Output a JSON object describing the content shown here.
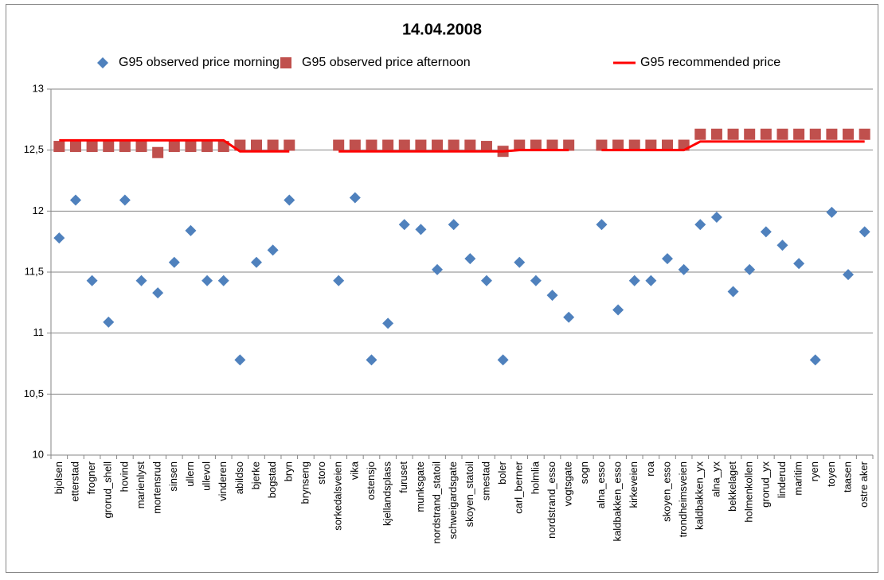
{
  "chart_data": {
    "type": "scatter",
    "title": "14.04.2008",
    "categories": [
      "bjolsen",
      "etterstad",
      "frogner",
      "grorud_shell",
      "hovind",
      "marienlyst",
      "mortensrud",
      "sinsen",
      "ullern",
      "ullevol",
      "vinderen",
      "abildso",
      "bjerke",
      "bogstad",
      "bryn",
      "brynseng",
      "storo",
      "sorkedalsveien",
      "vika",
      "ostensjo",
      "kjellandsplass",
      "furuset",
      "munksgate",
      "nordstrand_statoil",
      "schweigardsgate",
      "skoyen_statoil",
      "smestad",
      "boler",
      "carl_berner",
      "holmlia",
      "nordstrand_esso",
      "vogtsgate",
      "sogn",
      "alna_esso",
      "kaldbakken_esso",
      "kirkeveien",
      "roa",
      "skoyen_esso",
      "trondheimsveien",
      "kaldbakken_yx",
      "alna_yx",
      "bekkelaget",
      "holmenkollen",
      "grorud_yx",
      "linderud",
      "maritim",
      "ryen",
      "toyen",
      "taasen",
      "ostre aker"
    ],
    "series": [
      {
        "name": "G95 observed price morning",
        "color": "#4f81bd",
        "marker": "diamond",
        "values": [
          11.78,
          12.09,
          11.43,
          11.09,
          12.09,
          11.43,
          11.33,
          11.58,
          11.84,
          11.43,
          11.43,
          10.78,
          11.58,
          11.68,
          12.09,
          null,
          null,
          11.43,
          12.11,
          10.78,
          11.08,
          11.89,
          11.85,
          11.52,
          11.89,
          11.61,
          11.43,
          10.78,
          11.58,
          11.43,
          11.31,
          11.13,
          null,
          11.89,
          11.19,
          11.43,
          11.43,
          11.61,
          11.52,
          11.89,
          11.95,
          11.34,
          11.52,
          11.83,
          11.72,
          11.57,
          10.78,
          11.99,
          11.48,
          11.83
        ]
      },
      {
        "name": "G95 observed price afternoon",
        "color": "#c0504d",
        "marker": "square",
        "values": [
          12.53,
          12.53,
          12.53,
          12.53,
          12.53,
          12.53,
          12.48,
          12.53,
          12.53,
          12.53,
          12.53,
          12.54,
          12.54,
          12.54,
          12.54,
          null,
          null,
          12.54,
          12.54,
          12.54,
          12.54,
          12.54,
          12.54,
          12.54,
          12.54,
          12.54,
          12.53,
          12.49,
          12.54,
          12.54,
          12.54,
          12.54,
          null,
          12.54,
          12.54,
          12.54,
          12.54,
          12.54,
          12.54,
          12.63,
          12.63,
          12.63,
          12.63,
          12.63,
          12.63,
          12.63,
          12.63,
          12.63,
          12.63,
          12.63
        ]
      },
      {
        "name": "G95 recommended price",
        "color": "#ff0000",
        "marker": "line",
        "values": [
          12.58,
          12.58,
          12.58,
          12.58,
          12.58,
          12.58,
          12.58,
          12.58,
          12.58,
          12.58,
          12.58,
          12.49,
          12.49,
          12.49,
          12.49,
          null,
          null,
          12.49,
          12.49,
          12.49,
          12.49,
          12.49,
          12.49,
          12.49,
          12.49,
          12.49,
          12.49,
          12.49,
          12.5,
          12.5,
          12.5,
          12.5,
          null,
          12.5,
          12.5,
          12.5,
          12.5,
          12.5,
          12.5,
          12.57,
          12.57,
          12.57,
          12.57,
          12.57,
          12.57,
          12.57,
          12.57,
          12.57,
          12.57,
          12.57
        ]
      }
    ],
    "ylim": [
      10,
      13
    ],
    "yticks": [
      10,
      {
        "value": 10.5,
        "label": "10,5"
      },
      11,
      {
        "value": 11.5,
        "label": "11,5"
      },
      12,
      {
        "value": 12.5,
        "label": "12,5"
      },
      13
    ],
    "grid": true,
    "legend": "top"
  }
}
